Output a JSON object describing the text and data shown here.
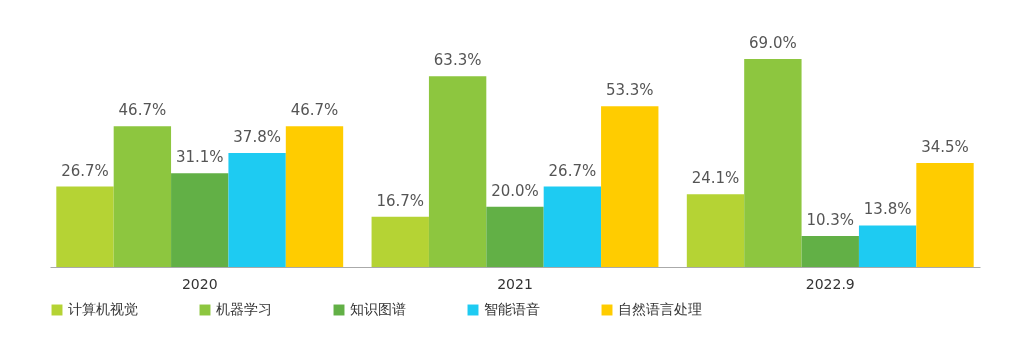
{
  "chart_data": {
    "type": "bar",
    "categories": [
      "2020",
      "2021",
      "2022.9"
    ],
    "series": [
      {
        "name": "计算机视觉",
        "color": "#b5d334",
        "values": [
          26.7,
          16.7,
          24.1
        ],
        "value_labels": [
          "26.7%",
          "16.7%",
          "24.1%"
        ]
      },
      {
        "name": "机器学习",
        "color": "#8dc63f",
        "values": [
          46.7,
          63.3,
          69.0
        ],
        "value_labels": [
          "46.7%",
          "63.3%",
          "69.0%"
        ]
      },
      {
        "name": "知识图谱",
        "color": "#62b046",
        "values": [
          31.1,
          20.0,
          10.3
        ],
        "value_labels": [
          "31.1%",
          "20.0%",
          "10.3%"
        ]
      },
      {
        "name": "智能语音",
        "color": "#1ecbf2",
        "values": [
          37.8,
          26.7,
          13.8
        ],
        "value_labels": [
          "37.8%",
          "26.7%",
          "13.8%"
        ]
      },
      {
        "name": "自然语言处理",
        "color": "#ffcc00",
        "values": [
          46.7,
          53.3,
          34.5
        ],
        "value_labels": [
          "46.7%",
          "53.3%",
          "34.5%"
        ]
      }
    ],
    "legend": "bottom"
  }
}
